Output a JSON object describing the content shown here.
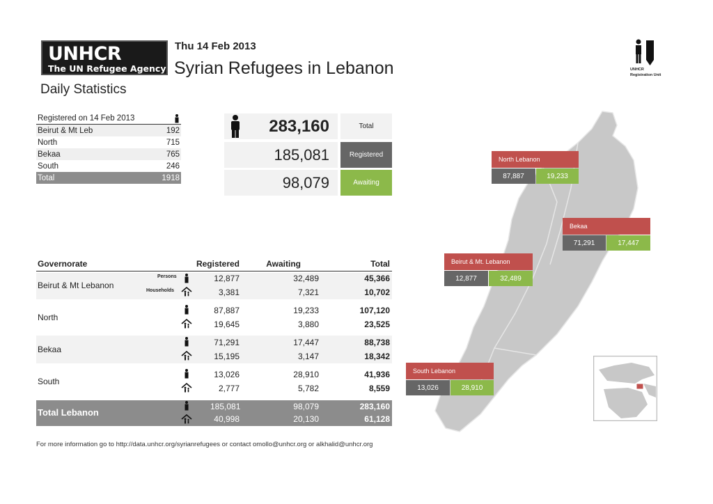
{
  "header": {
    "logo_main": "UNHCR",
    "logo_sub": "The UN Refugee Agency",
    "date": "Thu 14 Feb 2013",
    "title": "Syrian Refugees in Lebanon",
    "subtitle": "Daily Statistics",
    "unit_line1": "UNHCR",
    "unit_line2": "Registration Unit"
  },
  "daily": {
    "header": "Registered on 14 Feb 2013",
    "rows": [
      {
        "name": "Beirut & Mt Leb",
        "value": "192"
      },
      {
        "name": "North",
        "value": "715"
      },
      {
        "name": "Bekaa",
        "value": "765"
      },
      {
        "name": "South",
        "value": "246"
      }
    ],
    "total_label": "Total",
    "total_value": "1918"
  },
  "summary": {
    "total_value": "283,160",
    "total_label": "Total",
    "registered_value": "185,081",
    "registered_label": "Registered",
    "awaiting_value": "98,079",
    "awaiting_label": "Awaiting"
  },
  "main_table": {
    "headers": {
      "governorate": "Governorate",
      "registered": "Registered",
      "awaiting": "Awaiting",
      "total": "Total"
    },
    "persons_label": "Persons",
    "households_label": "Households",
    "rows": [
      {
        "name": "Beirut & Mt Lebanon",
        "p_reg": "12,877",
        "p_awa": "32,489",
        "p_tot": "45,366",
        "h_reg": "3,381",
        "h_awa": "7,321",
        "h_tot": "10,702"
      },
      {
        "name": "North",
        "p_reg": "87,887",
        "p_awa": "19,233",
        "p_tot": "107,120",
        "h_reg": "19,645",
        "h_awa": "3,880",
        "h_tot": "23,525"
      },
      {
        "name": "Bekaa",
        "p_reg": "71,291",
        "p_awa": "17,447",
        "p_tot": "88,738",
        "h_reg": "15,195",
        "h_awa": "3,147",
        "h_tot": "18,342"
      },
      {
        "name": "South",
        "p_reg": "13,026",
        "p_awa": "28,910",
        "p_tot": "41,936",
        "h_reg": "2,777",
        "h_awa": "5,782",
        "h_tot": "8,559"
      }
    ],
    "total": {
      "name": "Total Lebanon",
      "p_reg": "185,081",
      "p_awa": "98,079",
      "p_tot": "283,160",
      "h_reg": "40,998",
      "h_awa": "20,130",
      "h_tot": "61,128"
    }
  },
  "map": {
    "labels": [
      {
        "name": "North Lebanon",
        "registered": "87,887",
        "awaiting": "19,233"
      },
      {
        "name": "Bekaa",
        "registered": "71,291",
        "awaiting": "17,447"
      },
      {
        "name": "Beirut & Mt. Lebanon",
        "registered": "12,877",
        "awaiting": "32,489"
      },
      {
        "name": "South Lebanon",
        "registered": "13,026",
        "awaiting": "28,910"
      }
    ]
  },
  "footer": {
    "text": "For more information go to   http://data.unhcr.org/syrianrefugees   or contact  omollo@unhcr.org or alkhalid@unhcr.org"
  },
  "colors": {
    "red": "#c0504d",
    "green": "#8cb94a",
    "dark": "#666666",
    "gray": "#8c8c8c",
    "map": "#c8c8c8"
  },
  "icons": [
    "person-icon",
    "household-icon",
    "person-pencil-icon"
  ]
}
